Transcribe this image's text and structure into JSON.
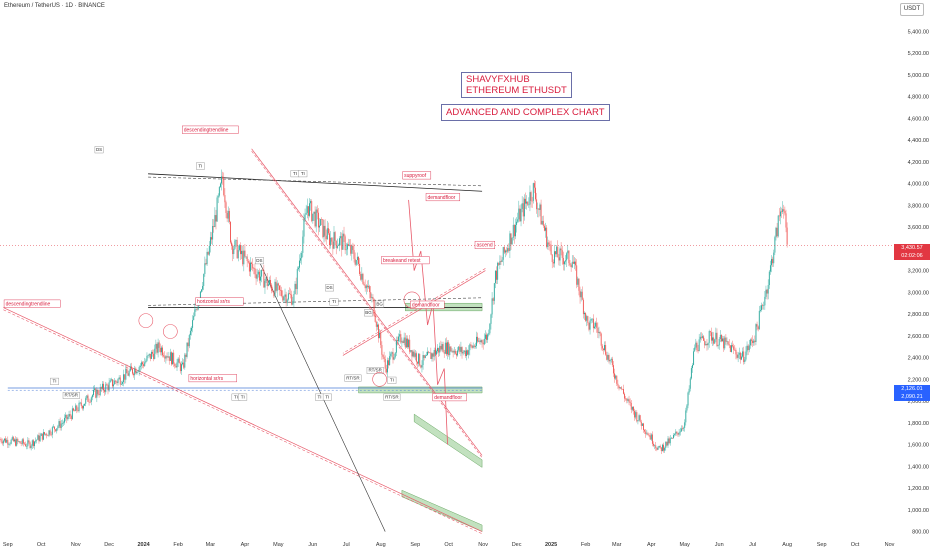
{
  "header": {
    "symbol": "Ethereum / TetherUS · 1D · BINANCE",
    "quote_currency": "USDT"
  },
  "annotations": {
    "title_line1": "SHAVYFXHUB",
    "title_line2": "ETHEREUM ETHUSDT",
    "subtitle": "ADVANCED AND COMPLEX CHART",
    "labels": [
      {
        "text": "descendingtrendline",
        "month": 5.2,
        "price": 4480
      },
      {
        "text": "descendingtrendline",
        "month": -0.05,
        "price": 2880
      },
      {
        "text": "horizontal sr/rs",
        "month": 5.6,
        "price": 2900
      },
      {
        "text": "horizontal sr/rs",
        "month": 5.4,
        "price": 2195
      },
      {
        "text": "suppyroof",
        "month": 11.7,
        "price": 4060
      },
      {
        "text": "demandfloor",
        "month": 12.4,
        "price": 3860
      },
      {
        "text": "breakeand retest",
        "month": 11.1,
        "price": 3280
      },
      {
        "text": "demandfloor",
        "month": 11.95,
        "price": 2870
      },
      {
        "text": "demandfloor",
        "month": 12.6,
        "price": 2020
      },
      {
        "text": "ascend",
        "month": 13.85,
        "price": 3420
      }
    ],
    "points": [
      {
        "text": "TI",
        "month": 5.7,
        "price": 4150
      },
      {
        "text": "DS",
        "month": 2.7,
        "price": 4300
      },
      {
        "text": "TI",
        "month": 8.5,
        "price": 4080
      },
      {
        "text": "TI",
        "month": 8.72,
        "price": 4080
      },
      {
        "text": "DS",
        "month": 7.45,
        "price": 3280
      },
      {
        "text": "DS",
        "month": 9.5,
        "price": 3030
      },
      {
        "text": "TI",
        "month": 9.65,
        "price": 2900
      },
      {
        "text": "TI",
        "month": 6.75,
        "price": 2025
      },
      {
        "text": "TI",
        "month": 6.95,
        "price": 2025
      },
      {
        "text": "TI",
        "month": 9.2,
        "price": 2025
      },
      {
        "text": "TI",
        "month": 9.45,
        "price": 2025
      },
      {
        "text": "RT/SR",
        "month": 10.2,
        "price": 2200
      },
      {
        "text": "RT/SR",
        "month": 10.85,
        "price": 2270
      },
      {
        "text": "RT/SR",
        "month": 11.35,
        "price": 2025
      },
      {
        "text": "TI",
        "month": 1.4,
        "price": 2170
      },
      {
        "text": "TI",
        "month": 11.35,
        "price": 2180
      },
      {
        "text": "BG",
        "month": 10.65,
        "price": 2800
      },
      {
        "text": "BG",
        "month": 11.0,
        "price": 2880
      },
      {
        "text": "RT/SR",
        "month": 1.9,
        "price": 2040
      }
    ]
  },
  "chart_data": {
    "type": "line",
    "title": "",
    "xlabel": "",
    "ylabel": "",
    "x_ticks": [
      "Sep",
      "Oct",
      "Nov",
      "Dec",
      "2024",
      "Feb",
      "Mar",
      "Apr",
      "May",
      "Jun",
      "Jul",
      "Aug",
      "Sep",
      "Oct",
      "Nov",
      "Dec",
      "2025",
      "Feb",
      "Mar",
      "Apr",
      "May",
      "Jun",
      "Jul",
      "Aug",
      "Sep",
      "Oct",
      "Nov"
    ],
    "y_ticks": [
      "800.00",
      "1,000.00",
      "1,200.00",
      "1,400.00",
      "1,600.00",
      "1,800.00",
      "2,000.00",
      "2,200.00",
      "2,400.00",
      "2,600.00",
      "2,800.00",
      "3,000.00",
      "3,200.00",
      "3,400.00",
      "3,600.00",
      "3,800.00",
      "4,000.00",
      "4,200.00",
      "4,400.00",
      "4,600.00",
      "4,800.00",
      "5,000.00",
      "5,200.00",
      "5,400.00"
    ],
    "ylim": [
      750,
      5560
    ],
    "xlim": [
      "2023-08-25",
      "2025-11-05"
    ],
    "series": [
      {
        "x": [
          "2023-08-25",
          "2023-09-20",
          "2023-10-20",
          "2023-11-15",
          "2023-12-10",
          "2024-01-01",
          "2024-01-15",
          "2024-02-05",
          "2024-02-28",
          "2024-03-12",
          "2024-03-20",
          "2024-04-05",
          "2024-04-20",
          "2024-05-01",
          "2024-05-15",
          "2024-05-27",
          "2024-06-15",
          "2024-06-30",
          "2024-07-10",
          "2024-07-25",
          "2024-08-05",
          "2024-08-20",
          "2024-09-06",
          "2024-09-25",
          "2024-10-15",
          "2024-11-05",
          "2024-11-12",
          "2024-12-01",
          "2024-12-16",
          "2025-01-01",
          "2025-01-20",
          "2025-02-03",
          "2025-02-10",
          "2025-03-01",
          "2025-03-10",
          "2025-04-08",
          "2025-04-20",
          "2025-05-01",
          "2025-05-10",
          "2025-05-25",
          "2025-06-10",
          "2025-06-22",
          "2025-07-03",
          "2025-07-15",
          "2025-07-25",
          "2025-07-28",
          "2025-08-01"
        ],
        "values": [
          1650,
          1600,
          1800,
          2050,
          2200,
          2350,
          2500,
          2300,
          3350,
          4050,
          3450,
          3250,
          3100,
          3000,
          2950,
          3800,
          3500,
          3450,
          3300,
          2900,
          2300,
          2600,
          2350,
          2500,
          2450,
          2600,
          3150,
          3650,
          3950,
          3350,
          3300,
          2700,
          2700,
          2200,
          2000,
          1550,
          1650,
          1800,
          2500,
          2600,
          2500,
          2400,
          2600,
          3100,
          3700,
          3850,
          3430
        ]
      }
    ],
    "current_price": {
      "value": "3,430.57",
      "countdown": "02:02:06",
      "color": "#e23742"
    },
    "price_tag_2": {
      "value": "2,126.01",
      "color": "#2962ff"
    },
    "price_tag_3": {
      "value": "2,090.21",
      "color": "#2962ff"
    },
    "colors": {
      "up": "#26a69a",
      "down": "#ef5350",
      "annotation": "#d81b3c",
      "zone": "#8fc98a",
      "hline": "#4a7bd6"
    }
  }
}
